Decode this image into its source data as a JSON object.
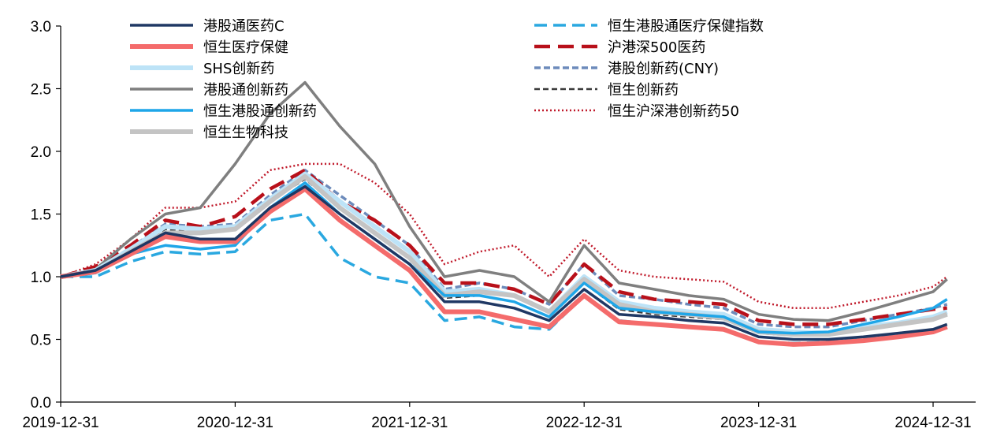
{
  "chart_data": {
    "type": "line",
    "title": "",
    "xlabel": "",
    "ylabel": "",
    "ylim": [
      0,
      3.0
    ],
    "yticks": [
      0.0,
      0.5,
      1.0,
      1.5,
      2.0,
      2.5,
      3.0
    ],
    "ytick_labels": [
      "0.0",
      "0.5",
      "1.0",
      "1.5",
      "2.0",
      "2.5",
      "3.0"
    ],
    "xlim": [
      2020.0,
      2025.1
    ],
    "xticks": [
      2020.0,
      2021.0,
      2022.0,
      2023.0,
      2024.0,
      2025.0
    ],
    "xtick_labels": [
      "2019-12-31",
      "2020-12-31",
      "2021-12-31",
      "2022-12-31",
      "2023-12-31",
      "2024-12-31"
    ],
    "legend_position": "top",
    "x": [
      2020.0,
      2020.2,
      2020.4,
      2020.6,
      2020.8,
      2021.0,
      2021.2,
      2021.4,
      2021.6,
      2021.8,
      2022.0,
      2022.2,
      2022.4,
      2022.6,
      2022.8,
      2023.0,
      2023.2,
      2023.4,
      2023.6,
      2023.8,
      2024.0,
      2024.2,
      2024.4,
      2024.6,
      2024.8,
      2025.0,
      2025.08
    ],
    "series": [
      {
        "name": "港股通医药C",
        "color": "#1f3864",
        "dash": "solid",
        "width": 3.5,
        "values": [
          1.0,
          1.05,
          1.2,
          1.35,
          1.3,
          1.3,
          1.55,
          1.72,
          1.5,
          1.3,
          1.1,
          0.8,
          0.8,
          0.75,
          0.65,
          0.9,
          0.7,
          0.68,
          0.65,
          0.63,
          0.52,
          0.5,
          0.5,
          0.52,
          0.55,
          0.58,
          0.62
        ]
      },
      {
        "name": "恒生医疗保健",
        "color": "#f46b6b",
        "dash": "solid",
        "width": 6,
        "values": [
          1.0,
          1.04,
          1.18,
          1.32,
          1.28,
          1.28,
          1.52,
          1.7,
          1.45,
          1.25,
          1.05,
          0.72,
          0.72,
          0.66,
          0.6,
          0.85,
          0.64,
          0.62,
          0.6,
          0.58,
          0.48,
          0.46,
          0.47,
          0.49,
          0.52,
          0.56,
          0.6
        ]
      },
      {
        "name": "SHS创新药",
        "color": "#bde3f7",
        "dash": "solid",
        "width": 6,
        "values": [
          1.0,
          1.05,
          1.22,
          1.4,
          1.38,
          1.4,
          1.62,
          1.82,
          1.6,
          1.4,
          1.2,
          0.88,
          0.9,
          0.85,
          0.72,
          1.0,
          0.8,
          0.75,
          0.72,
          0.7,
          0.58,
          0.56,
          0.55,
          0.6,
          0.63,
          0.68,
          0.72
        ]
      },
      {
        "name": "港股通创新药",
        "color": "#7f7f7f",
        "dash": "solid",
        "width": 3.5,
        "values": [
          1.0,
          1.06,
          1.3,
          1.5,
          1.55,
          1.9,
          2.3,
          2.55,
          2.2,
          1.9,
          1.4,
          1.0,
          1.05,
          1.0,
          0.8,
          1.25,
          0.95,
          0.9,
          0.85,
          0.82,
          0.7,
          0.66,
          0.65,
          0.72,
          0.8,
          0.88,
          0.98
        ]
      },
      {
        "name": "恒生港股通创新药",
        "color": "#1fa6e8",
        "dash": "solid",
        "width": 3.5,
        "values": [
          1.0,
          1.03,
          1.18,
          1.25,
          1.22,
          1.25,
          1.55,
          1.75,
          1.5,
          1.3,
          1.1,
          0.85,
          0.85,
          0.8,
          0.68,
          0.95,
          0.75,
          0.72,
          0.7,
          0.68,
          0.56,
          0.55,
          0.56,
          0.62,
          0.68,
          0.75,
          0.82
        ]
      },
      {
        "name": "恒生生物科技",
        "color": "#c4c4c4",
        "dash": "solid",
        "width": 6,
        "values": [
          1.0,
          1.04,
          1.2,
          1.35,
          1.35,
          1.38,
          1.6,
          1.8,
          1.55,
          1.35,
          1.15,
          0.85,
          0.88,
          0.85,
          0.72,
          0.98,
          0.78,
          0.72,
          0.7,
          0.67,
          0.56,
          0.54,
          0.54,
          0.58,
          0.62,
          0.66,
          0.7
        ]
      },
      {
        "name": "恒生港股通医疗保健指数",
        "color": "#2aa8e0",
        "dash": "16 8",
        "width": 3.5,
        "values": [
          1.0,
          1.0,
          1.12,
          1.2,
          1.18,
          1.2,
          1.45,
          1.5,
          1.15,
          1.0,
          0.95,
          0.65,
          0.68,
          0.6,
          0.58,
          0.85,
          0.65,
          0.62,
          0.6,
          0.58,
          0.48,
          0.47,
          0.48,
          0.5,
          0.53,
          0.57,
          0.6
        ]
      },
      {
        "name": "沪港深500医药",
        "color": "#b8101a",
        "dash": "20 10",
        "width": 4.5,
        "values": [
          1.0,
          1.08,
          1.25,
          1.45,
          1.4,
          1.48,
          1.7,
          1.85,
          1.6,
          1.45,
          1.25,
          0.95,
          0.95,
          0.9,
          0.78,
          1.1,
          0.88,
          0.82,
          0.8,
          0.78,
          0.65,
          0.62,
          0.62,
          0.66,
          0.7,
          0.74,
          0.75
        ]
      },
      {
        "name": "港股创新药(CNY)",
        "color": "#6d8bbb",
        "dash": "8 4",
        "width": 3.5,
        "values": [
          1.0,
          1.06,
          1.23,
          1.42,
          1.4,
          1.42,
          1.65,
          1.85,
          1.65,
          1.45,
          1.25,
          0.9,
          0.95,
          0.9,
          0.78,
          1.1,
          0.85,
          0.82,
          0.78,
          0.75,
          0.62,
          0.6,
          0.6,
          0.65,
          0.7,
          0.75,
          0.78
        ]
      },
      {
        "name": "恒生创新药",
        "color": "#3a3a3a",
        "dash": "7 4",
        "width": 2.5,
        "values": [
          1.0,
          1.05,
          1.2,
          1.38,
          1.35,
          1.38,
          1.6,
          1.78,
          1.55,
          1.35,
          1.15,
          0.83,
          0.85,
          0.8,
          0.68,
          0.95,
          0.74,
          0.7,
          0.68,
          0.66,
          0.55,
          0.53,
          0.53,
          0.58,
          0.62,
          0.66,
          0.7
        ]
      },
      {
        "name": "恒生沪深港创新药50",
        "color": "#c0192a",
        "dash": "2 3",
        "width": 2.5,
        "values": [
          1.0,
          1.1,
          1.3,
          1.55,
          1.55,
          1.6,
          1.85,
          1.9,
          1.9,
          1.75,
          1.5,
          1.1,
          1.2,
          1.25,
          1.0,
          1.3,
          1.05,
          1.0,
          0.98,
          0.96,
          0.8,
          0.75,
          0.75,
          0.8,
          0.85,
          0.92,
          1.0
        ]
      }
    ]
  }
}
